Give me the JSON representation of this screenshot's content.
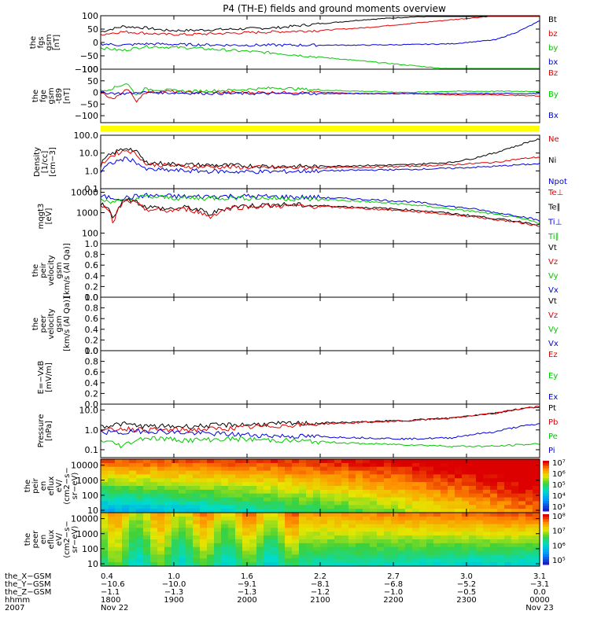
{
  "title": "P4 (TH-E) fields and ground moments overview",
  "colors": {
    "black": "#000000",
    "red": "#e00000",
    "green": "#00c800",
    "blue": "#0000e0",
    "yellow": "#ffff00"
  },
  "chart_data": [
    {
      "type": "line",
      "id": "fgs",
      "ylabel": [
        "the",
        "fgs",
        "gsm",
        "[nT]"
      ],
      "ylim": [
        -100,
        100
      ],
      "ticks": [
        "100",
        "50",
        "0",
        "−50",
        "−100"
      ],
      "tickvals": [
        100,
        50,
        0,
        -50,
        -100
      ],
      "legend": [
        {
          "name": "Bt",
          "color": "black"
        },
        {
          "name": "bz",
          "color": "red"
        },
        {
          "name": "by",
          "color": "green"
        },
        {
          "name": "bx",
          "color": "blue"
        }
      ],
      "series": [
        {
          "name": "Bt",
          "color": "black",
          "x": [
            0,
            0.05,
            0.1,
            0.15,
            0.2,
            0.3,
            0.4,
            0.5,
            0.6,
            0.7,
            0.8,
            0.9,
            1.0
          ],
          "y": [
            40,
            60,
            55,
            45,
            45,
            50,
            55,
            70,
            85,
            95,
            100,
            100,
            100
          ]
        },
        {
          "name": "bz",
          "color": "red",
          "x": [
            0,
            0.05,
            0.1,
            0.15,
            0.2,
            0.3,
            0.4,
            0.5,
            0.6,
            0.7,
            0.8,
            0.9,
            1.0
          ],
          "y": [
            30,
            40,
            35,
            30,
            30,
            35,
            40,
            45,
            55,
            70,
            85,
            100,
            100
          ]
        },
        {
          "name": "by",
          "color": "green",
          "x": [
            0,
            0.05,
            0.1,
            0.2,
            0.3,
            0.4,
            0.5,
            0.6,
            0.7,
            0.8,
            0.9,
            1.0
          ],
          "y": [
            -20,
            -30,
            -15,
            -20,
            -30,
            -40,
            -55,
            -70,
            -85,
            -100,
            -100,
            -100
          ]
        },
        {
          "name": "bx",
          "color": "blue",
          "x": [
            0,
            0.05,
            0.1,
            0.2,
            0.3,
            0.4,
            0.5,
            0.6,
            0.7,
            0.8,
            0.9,
            0.95,
            1.0
          ],
          "y": [
            -5,
            -10,
            -5,
            -8,
            -10,
            -10,
            -10,
            -10,
            -8,
            -5,
            10,
            40,
            80
          ]
        }
      ]
    },
    {
      "type": "line",
      "id": "fge",
      "ylabel": [
        "the",
        "fge",
        "gsm",
        "-t89",
        "[nT]"
      ],
      "ylim": [
        -130,
        100
      ],
      "ticks": [
        "100",
        "50",
        "0",
        "−50",
        "−100"
      ],
      "tickvals": [
        100,
        50,
        0,
        -50,
        -100
      ],
      "legend": [
        {
          "name": "Bz",
          "color": "red"
        },
        {
          "name": "By",
          "color": "green"
        },
        {
          "name": "Bx",
          "color": "blue"
        }
      ],
      "series": [
        {
          "name": "Bz",
          "color": "red",
          "x": [
            0,
            0.03,
            0.06,
            0.08,
            0.1,
            0.15,
            0.2,
            0.3,
            0.4,
            0.5,
            0.6,
            0.7,
            0.8,
            0.9,
            1.0
          ],
          "y": [
            0,
            -30,
            20,
            -40,
            0,
            5,
            0,
            0,
            0,
            0,
            -5,
            -5,
            -10,
            -10,
            -15
          ]
        },
        {
          "name": "By",
          "color": "green",
          "x": [
            0,
            0.03,
            0.06,
            0.08,
            0.1,
            0.15,
            0.2,
            0.3,
            0.4,
            0.5,
            0.6,
            0.7,
            0.8,
            0.9,
            1.0
          ],
          "y": [
            5,
            20,
            40,
            -10,
            15,
            10,
            5,
            10,
            20,
            10,
            5,
            0,
            5,
            5,
            5
          ]
        },
        {
          "name": "Bx",
          "color": "blue",
          "x": [
            0,
            0.05,
            0.1,
            0.2,
            0.3,
            0.4,
            0.5,
            0.6,
            0.7,
            0.8,
            0.9,
            1.0
          ],
          "y": [
            0,
            -5,
            0,
            -3,
            -5,
            -5,
            -5,
            -5,
            -5,
            -5,
            -5,
            -5
          ]
        }
      ]
    },
    {
      "type": "line",
      "id": "density",
      "ylabel": [
        "Density",
        "[1/cc]",
        "[cm−3]"
      ],
      "ylog": true,
      "ylim": [
        0.1,
        100
      ],
      "ticks": [
        "100.0",
        "10.0",
        "1.0",
        "0.1"
      ],
      "tickvals": [
        100,
        10,
        1,
        0.1
      ],
      "legend": [
        {
          "name": "Ne",
          "color": "red"
        },
        {
          "name": "Ni",
          "color": "black"
        },
        {
          "name": "Npot",
          "color": "blue"
        }
      ],
      "series": [
        {
          "name": "Ni",
          "color": "black",
          "x": [
            0,
            0.03,
            0.06,
            0.1,
            0.15,
            0.2,
            0.3,
            0.4,
            0.5,
            0.6,
            0.7,
            0.8,
            0.85,
            0.9,
            0.95,
            1.0
          ],
          "y": [
            2,
            10,
            20,
            3,
            2.5,
            2.2,
            2,
            1.8,
            1.8,
            2,
            2.2,
            3,
            5,
            10,
            25,
            60
          ]
        },
        {
          "name": "Ne",
          "color": "red",
          "x": [
            0,
            0.03,
            0.06,
            0.1,
            0.15,
            0.2,
            0.3,
            0.4,
            0.5,
            0.6,
            0.7,
            0.8,
            0.9,
            1.0
          ],
          "y": [
            1.5,
            8,
            15,
            2.5,
            2,
            1.8,
            1.6,
            1.5,
            1.5,
            1.6,
            1.8,
            2.2,
            3,
            6
          ]
        },
        {
          "name": "Npot",
          "color": "blue",
          "x": [
            0,
            0.03,
            0.06,
            0.1,
            0.2,
            0.3,
            0.4,
            0.5,
            0.6,
            0.7,
            0.8,
            0.9,
            1.0
          ],
          "y": [
            0.8,
            3,
            5,
            1.2,
            1,
            0.9,
            0.9,
            1,
            1.1,
            1.2,
            1.4,
            1.8,
            2.5
          ]
        }
      ]
    },
    {
      "type": "line",
      "id": "temp",
      "ylabel": [
        "mqgt3",
        "[eV]"
      ],
      "ylog": true,
      "ylim": [
        30,
        15000
      ],
      "ticks": [
        "10000",
        "1000",
        "100"
      ],
      "tickvals": [
        10000,
        1000,
        100
      ],
      "legend": [
        {
          "name": "Te⊥",
          "color": "red"
        },
        {
          "name": "Te∥",
          "color": "black"
        },
        {
          "name": "Ti⊥",
          "color": "blue"
        },
        {
          "name": "Ti∥",
          "color": "green"
        }
      ],
      "series": [
        {
          "name": "Ti⊥",
          "color": "blue",
          "x": [
            0,
            0.05,
            0.1,
            0.2,
            0.3,
            0.4,
            0.5,
            0.6,
            0.7,
            0.8,
            0.9,
            1.0
          ],
          "y": [
            6000,
            5000,
            7000,
            6000,
            6500,
            6000,
            5500,
            4500,
            3500,
            2000,
            1000,
            400
          ]
        },
        {
          "name": "Ti∥",
          "color": "green",
          "x": [
            0,
            0.05,
            0.1,
            0.2,
            0.3,
            0.4,
            0.5,
            0.6,
            0.7,
            0.8,
            0.9,
            1.0
          ],
          "y": [
            4000,
            3500,
            6000,
            5000,
            5500,
            5000,
            4500,
            3500,
            2500,
            1500,
            800,
            300
          ]
        },
        {
          "name": "Te∥",
          "color": "black",
          "x": [
            0,
            0.03,
            0.06,
            0.1,
            0.15,
            0.2,
            0.25,
            0.3,
            0.4,
            0.5,
            0.6,
            0.7,
            0.8,
            0.9,
            1.0
          ],
          "y": [
            3000,
            300,
            5000,
            2000,
            1500,
            1800,
            800,
            2000,
            2500,
            2200,
            1800,
            1400,
            900,
            500,
            250
          ]
        },
        {
          "name": "Te⊥",
          "color": "red",
          "x": [
            0,
            0.03,
            0.06,
            0.1,
            0.15,
            0.2,
            0.25,
            0.3,
            0.4,
            0.5,
            0.6,
            0.7,
            0.8,
            0.9,
            1.0
          ],
          "y": [
            2500,
            150,
            4000,
            1500,
            1200,
            1500,
            600,
            1800,
            2200,
            2000,
            1600,
            1200,
            800,
            450,
            220
          ]
        }
      ]
    },
    {
      "type": "line",
      "id": "peir",
      "ylabel": [
        "the",
        "peir",
        "velocity",
        "gsm",
        "[km/s (Al Qa)]"
      ],
      "ylim": [
        0,
        1
      ],
      "ticks": [
        "1.0",
        "0.8",
        "0.6",
        "0.4",
        "0.2",
        "0.0"
      ],
      "tickvals": [
        1,
        0.8,
        0.6,
        0.4,
        0.2,
        0
      ],
      "legend": [
        {
          "name": "Vt",
          "color": "black"
        },
        {
          "name": "Vz",
          "color": "red"
        },
        {
          "name": "Vy",
          "color": "green"
        },
        {
          "name": "Vx",
          "color": "blue"
        }
      ],
      "series": []
    },
    {
      "type": "line",
      "id": "peer",
      "ylabel": [
        "the",
        "peer",
        "velocity",
        "gsm",
        "[km/s (Al Qa)]"
      ],
      "ylim": [
        0,
        1
      ],
      "ticks": [
        "1.0",
        "0.8",
        "0.6",
        "0.4",
        "0.2",
        "0.0"
      ],
      "tickvals": [
        1,
        0.8,
        0.6,
        0.4,
        0.2,
        0
      ],
      "legend": [
        {
          "name": "Vt",
          "color": "black"
        },
        {
          "name": "Vz",
          "color": "red"
        },
        {
          "name": "Vy",
          "color": "green"
        },
        {
          "name": "Vx",
          "color": "blue"
        }
      ],
      "series": []
    },
    {
      "type": "line",
      "id": "efield",
      "ylabel": [
        "E=−VxB",
        "[mV/m]"
      ],
      "ylim": [
        0,
        1
      ],
      "ticks": [
        "1.0",
        "0.8",
        "0.6",
        "0.4",
        "0.2",
        "0.0"
      ],
      "tickvals": [
        1,
        0.8,
        0.6,
        0.4,
        0.2,
        0
      ],
      "legend": [
        {
          "name": "Ez",
          "color": "red"
        },
        {
          "name": "Ey",
          "color": "green"
        },
        {
          "name": "Ex",
          "color": "blue"
        }
      ],
      "series": []
    },
    {
      "type": "line",
      "id": "pressure",
      "ylabel": [
        "Pressure",
        "[nPa]"
      ],
      "ylog": true,
      "ylim": [
        0.04,
        20
      ],
      "ticks": [
        "10.0",
        "1.0",
        "0.1"
      ],
      "tickvals": [
        10,
        1,
        0.1
      ],
      "legend": [
        {
          "name": "Pt",
          "color": "black"
        },
        {
          "name": "Pb",
          "color": "red"
        },
        {
          "name": "Pe",
          "color": "green"
        },
        {
          "name": "Pi",
          "color": "blue"
        }
      ],
      "series": [
        {
          "name": "Pt",
          "color": "black",
          "x": [
            0,
            0.05,
            0.1,
            0.2,
            0.3,
            0.4,
            0.5,
            0.6,
            0.7,
            0.8,
            0.9,
            1.0
          ],
          "y": [
            1.5,
            2,
            1.5,
            1.5,
            1.8,
            2,
            2.2,
            2.5,
            3,
            4,
            7,
            15
          ]
        },
        {
          "name": "Pb",
          "color": "red",
          "x": [
            0,
            0.05,
            0.1,
            0.2,
            0.3,
            0.4,
            0.5,
            0.6,
            0.7,
            0.8,
            0.9,
            1.0
          ],
          "y": [
            0.8,
            1.2,
            1,
            1,
            1.2,
            1.6,
            2,
            2.4,
            2.9,
            3.9,
            6.8,
            15
          ]
        },
        {
          "name": "Pi",
          "color": "blue",
          "x": [
            0,
            0.05,
            0.1,
            0.2,
            0.3,
            0.4,
            0.5,
            0.6,
            0.7,
            0.8,
            0.9,
            1.0
          ],
          "y": [
            0.8,
            0.7,
            0.9,
            0.7,
            0.6,
            0.5,
            0.45,
            0.4,
            0.35,
            0.4,
            0.8,
            2
          ]
        },
        {
          "name": "Pe",
          "color": "green",
          "x": [
            0,
            0.05,
            0.1,
            0.2,
            0.3,
            0.4,
            0.5,
            0.6,
            0.7,
            0.8,
            0.9,
            1.0
          ],
          "y": [
            0.3,
            0.15,
            0.4,
            0.3,
            0.35,
            0.3,
            0.25,
            0.2,
            0.18,
            0.15,
            0.15,
            0.2
          ]
        }
      ]
    },
    {
      "type": "heatmap",
      "id": "peir_spec",
      "ylabel": [
        "the",
        "peir",
        "en",
        "eflux",
        "eV/",
        "(cm2−s−",
        "sr−eV)"
      ],
      "ylog": true,
      "ylim": [
        7,
        25000
      ],
      "ticks": [
        "10000",
        "1000",
        "100",
        "10"
      ],
      "tickvals": [
        10000,
        1000,
        100,
        10
      ],
      "colorbar": {
        "labels": [
          "10⁷",
          "10⁶",
          "10⁵",
          "10⁴",
          "10³"
        ],
        "range": [
          3,
          7
        ]
      }
    },
    {
      "type": "heatmap",
      "id": "peer_spec",
      "ylabel": [
        "the",
        "peer",
        "en",
        "eflux",
        "eV/",
        "(cm2−s−",
        "sr−eV)"
      ],
      "ylog": true,
      "ylim": [
        7,
        25000
      ],
      "ticks": [
        "10000",
        "1000",
        "100",
        "10"
      ],
      "tickvals": [
        10000,
        1000,
        100,
        10
      ],
      "colorbar": {
        "labels": [
          "10⁸",
          "10⁷",
          "10⁶",
          "10⁵"
        ],
        "range": [
          5,
          8
        ]
      }
    }
  ],
  "xaxis": {
    "row_labels": [
      "the_X−GSM",
      "the_Y−GSM",
      "the_Z−GSM",
      "hhmm",
      "2007"
    ],
    "columns": [
      {
        "pos": 0.0,
        "vals": [
          "0.4",
          "−10.6",
          "−1.1",
          "1800",
          "Nov 22"
        ]
      },
      {
        "pos": 0.1667,
        "vals": [
          "1.0",
          "−10.0",
          "−1.3",
          "1900",
          ""
        ]
      },
      {
        "pos": 0.3333,
        "vals": [
          "1.6",
          "−9.1",
          "−1.3",
          "2000",
          ""
        ]
      },
      {
        "pos": 0.5,
        "vals": [
          "2.2",
          "−8.1",
          "−1.2",
          "2100",
          ""
        ]
      },
      {
        "pos": 0.6667,
        "vals": [
          "2.7",
          "−6.8",
          "−1.0",
          "2200",
          ""
        ]
      },
      {
        "pos": 0.8333,
        "vals": [
          "3.0",
          "−5.2",
          "−0.5",
          "2300",
          ""
        ]
      },
      {
        "pos": 1.0,
        "vals": [
          "3.1",
          "−3.1",
          "0.0",
          "0000",
          "Nov 23"
        ]
      }
    ]
  }
}
